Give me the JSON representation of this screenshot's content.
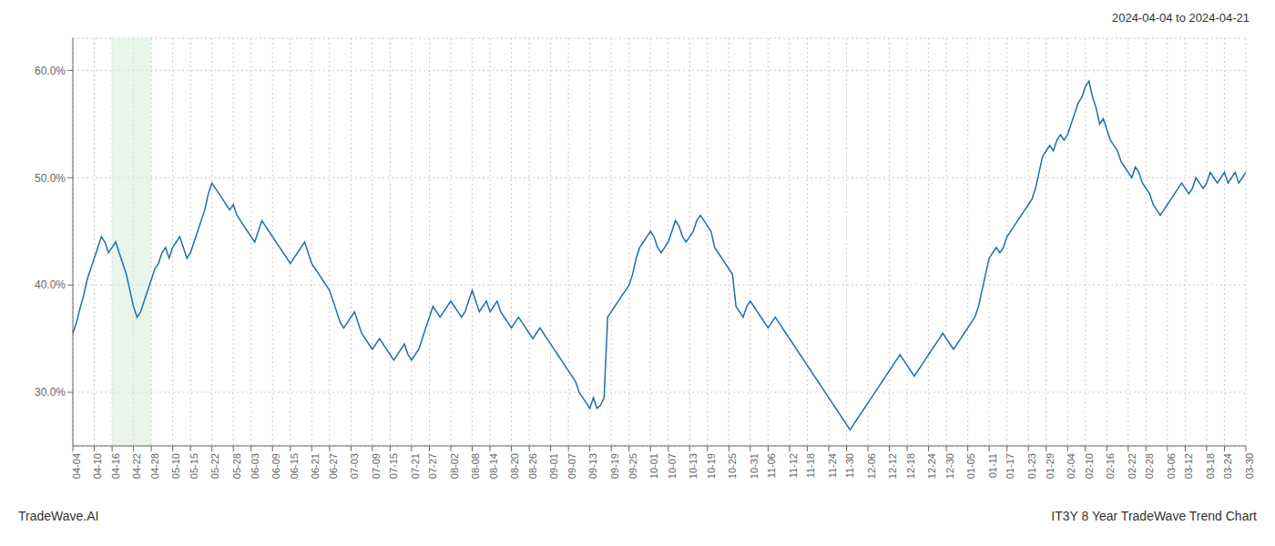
{
  "chart_data": {
    "type": "line",
    "title": "2024-04-04 to 2024-04-21",
    "annotations": [
      "TradeWave.AI",
      "IT3Y 8 Year TradeWave Trend Chart"
    ],
    "color": "#1f6fad",
    "grid": true,
    "ylim": [
      25,
      63
    ],
    "yticks": [
      {
        "value": 30.0,
        "label": "30.0%"
      },
      {
        "value": 40.0,
        "label": "40.0%"
      },
      {
        "value": 50.0,
        "label": "50.0%"
      },
      {
        "value": 60.0,
        "label": "60.0%"
      }
    ],
    "highlight": {
      "from": "04-16",
      "to": "04-28",
      "color": "#d4edda"
    },
    "categories": [
      "04-04",
      null,
      null,
      null,
      null,
      null,
      "04-10",
      null,
      null,
      null,
      null,
      "04-16",
      null,
      null,
      null,
      null,
      null,
      "04-22",
      null,
      null,
      null,
      null,
      "04-28",
      null,
      null,
      null,
      null,
      null,
      "05-10",
      null,
      null,
      null,
      null,
      "05-15",
      null,
      null,
      null,
      null,
      null,
      "05-22",
      null,
      null,
      null,
      null,
      null,
      "05-28",
      null,
      null,
      null,
      null,
      "06-03",
      null,
      null,
      null,
      null,
      null,
      "06-09",
      null,
      null,
      null,
      null,
      "06-15",
      null,
      null,
      null,
      null,
      null,
      "06-21",
      null,
      null,
      null,
      null,
      "06-27",
      null,
      null,
      null,
      null,
      null,
      "07-03",
      null,
      null,
      null,
      null,
      null,
      "07-09",
      null,
      null,
      null,
      null,
      "07-15",
      null,
      null,
      null,
      null,
      null,
      "07-21",
      null,
      null,
      null,
      null,
      "07-27",
      null,
      null,
      null,
      null,
      null,
      "08-02",
      null,
      null,
      null,
      null,
      null,
      "08-08",
      null,
      null,
      null,
      null,
      "08-14",
      null,
      null,
      null,
      null,
      null,
      "08-20",
      null,
      null,
      null,
      null,
      "08-26",
      null,
      null,
      null,
      null,
      null,
      "09-01",
      null,
      null,
      null,
      null,
      "09-07",
      null,
      null,
      null,
      null,
      null,
      "09-13",
      null,
      null,
      null,
      null,
      null,
      "09-19",
      null,
      null,
      null,
      null,
      "09-25",
      null,
      null,
      null,
      null,
      null,
      "10-01",
      null,
      null,
      null,
      null,
      "10-07",
      null,
      null,
      null,
      null,
      null,
      "10-13",
      null,
      null,
      null,
      null,
      "10-19",
      null,
      null,
      null,
      null,
      null,
      "10-25",
      null,
      null,
      null,
      null,
      null,
      "10-31",
      null,
      null,
      null,
      null,
      "11-06",
      null,
      null,
      null,
      null,
      null,
      "11-12",
      null,
      null,
      null,
      null,
      "11-18",
      null,
      null,
      null,
      null,
      null,
      "11-24",
      null,
      null,
      null,
      null,
      "11-30",
      null,
      null,
      null,
      null,
      null,
      "12-06",
      null,
      null,
      null,
      null,
      null,
      "12-12",
      null,
      null,
      null,
      null,
      "12-18",
      null,
      null,
      null,
      null,
      null,
      "12-24",
      null,
      null,
      null,
      null,
      "12-30",
      null,
      null,
      null,
      null,
      null,
      "01-05",
      null,
      null,
      null,
      null,
      null,
      "01-11",
      null,
      null,
      null,
      null,
      "01-17",
      null,
      null,
      null,
      null,
      null,
      "01-23",
      null,
      null,
      null,
      null,
      "01-29",
      null,
      null,
      null,
      null,
      null,
      "02-04",
      null,
      null,
      null,
      null,
      "02-10",
      null,
      null,
      null,
      null,
      null,
      "02-16",
      null,
      null,
      null,
      null,
      null,
      "02-22",
      null,
      null,
      null,
      null,
      "02-28",
      null,
      null,
      null,
      null,
      null,
      "03-06",
      null,
      null,
      null,
      null,
      "03-12",
      null,
      null,
      null,
      null,
      null,
      "03-18",
      null,
      null,
      null,
      null,
      "03-24",
      null,
      null,
      null,
      null,
      null,
      "03-30"
    ],
    "values": [
      35.5,
      36.5,
      37.8,
      39.0,
      40.5,
      41.5,
      42.5,
      43.5,
      44.5,
      44.0,
      43.0,
      43.5,
      44.0,
      43.0,
      42.0,
      41.0,
      39.5,
      38.0,
      37.0,
      37.5,
      38.5,
      39.5,
      40.5,
      41.5,
      42.0,
      43.0,
      43.5,
      42.5,
      43.5,
      44.0,
      44.5,
      43.5,
      42.5,
      43.0,
      44.0,
      45.0,
      46.0,
      47.0,
      48.5,
      49.5,
      49.0,
      48.5,
      48.0,
      47.5,
      47.0,
      47.5,
      46.5,
      46.0,
      45.5,
      45.0,
      44.5,
      44.0,
      45.0,
      46.0,
      45.5,
      45.0,
      44.5,
      44.0,
      43.5,
      43.0,
      42.5,
      42.0,
      42.5,
      43.0,
      43.5,
      44.0,
      43.0,
      42.0,
      41.5,
      41.0,
      40.5,
      40.0,
      39.5,
      38.5,
      37.5,
      36.5,
      36.0,
      36.5,
      37.0,
      37.5,
      36.5,
      35.5,
      35.0,
      34.5,
      34.0,
      34.5,
      35.0,
      34.5,
      34.0,
      33.5,
      33.0,
      33.5,
      34.0,
      34.5,
      33.5,
      33.0,
      33.5,
      34.0,
      35.0,
      36.0,
      37.0,
      38.0,
      37.5,
      37.0,
      37.5,
      38.0,
      38.5,
      38.0,
      37.5,
      37.0,
      37.5,
      38.5,
      39.5,
      38.5,
      37.5,
      38.0,
      38.5,
      37.5,
      38.0,
      38.5,
      37.5,
      37.0,
      36.5,
      36.0,
      36.5,
      37.0,
      36.5,
      36.0,
      35.5,
      35.0,
      35.5,
      36.0,
      35.5,
      35.0,
      34.5,
      34.0,
      33.5,
      33.0,
      32.5,
      32.0,
      31.5,
      31.0,
      30.0,
      29.5,
      29.0,
      28.5,
      29.5,
      28.5,
      28.8,
      29.5,
      37.0,
      37.5,
      38.0,
      38.5,
      39.0,
      39.5,
      40.0,
      41.0,
      42.5,
      43.5,
      44.0,
      44.5,
      45.0,
      44.5,
      43.5,
      43.0,
      43.5,
      44.0,
      45.0,
      46.0,
      45.5,
      44.5,
      44.0,
      44.5,
      45.0,
      46.0,
      46.5,
      46.0,
      45.5,
      45.0,
      43.5,
      43.0,
      42.5,
      42.0,
      41.5,
      41.0,
      38.0,
      37.5,
      37.0,
      38.0,
      38.5,
      38.0,
      37.5,
      37.0,
      36.5,
      36.0,
      36.5,
      37.0,
      36.5,
      36.0,
      35.5,
      35.0,
      34.5,
      34.0,
      33.5,
      33.0,
      32.5,
      32.0,
      31.5,
      31.0,
      30.5,
      30.0,
      29.5,
      29.0,
      28.5,
      28.0,
      27.5,
      27.0,
      26.5,
      27.0,
      27.5,
      28.0,
      28.5,
      29.0,
      29.5,
      30.0,
      30.5,
      31.0,
      31.5,
      32.0,
      32.5,
      33.0,
      33.5,
      33.0,
      32.5,
      32.0,
      31.5,
      32.0,
      32.5,
      33.0,
      33.5,
      34.0,
      34.5,
      35.0,
      35.5,
      35.0,
      34.5,
      34.0,
      34.5,
      35.0,
      35.5,
      36.0,
      36.5,
      37.0,
      38.0,
      39.5,
      41.0,
      42.5,
      43.0,
      43.5,
      43.0,
      43.5,
      44.5,
      45.0,
      45.5,
      46.0,
      46.5,
      47.0,
      47.5,
      48.0,
      49.0,
      50.5,
      52.0,
      52.5,
      53.0,
      52.5,
      53.5,
      54.0,
      53.5,
      54.0,
      55.0,
      56.0,
      57.0,
      57.5,
      58.5,
      59.0,
      57.5,
      56.5,
      55.0,
      55.5,
      54.5,
      53.5,
      53.0,
      52.5,
      51.5,
      51.0,
      50.5,
      50.0,
      51.0,
      50.5,
      49.5,
      49.0,
      48.5,
      47.5,
      47.0,
      46.5,
      47.0,
      47.5,
      48.0,
      48.5,
      49.0,
      49.5,
      49.0,
      48.5,
      49.0,
      50.0,
      49.5,
      49.0,
      49.5,
      50.5,
      50.0,
      49.5,
      50.0,
      50.5,
      49.5,
      50.0,
      50.5,
      49.5,
      50.0,
      50.5
    ]
  }
}
